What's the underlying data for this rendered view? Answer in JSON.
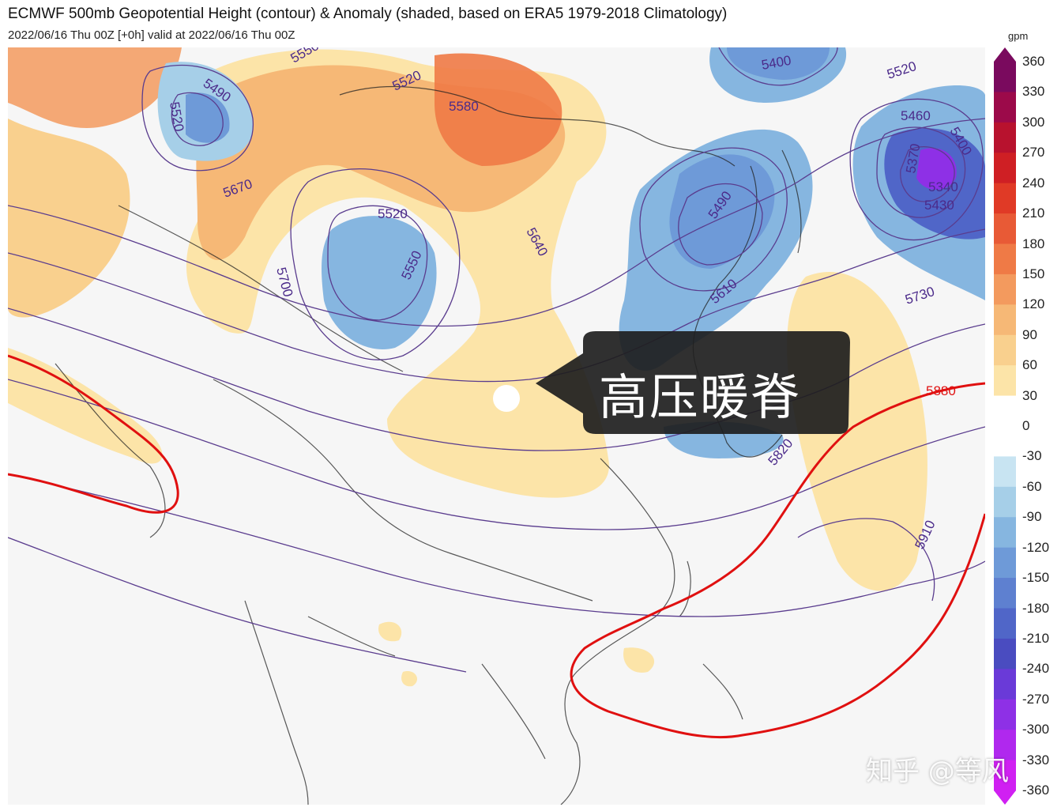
{
  "header": {
    "title": "ECMWF 500mb Geopotential Height (contour) & Anomaly (shaded, based on ERA5 1979-2018 Climatology)",
    "subtitle": "2022/06/16 Thu 00Z [+0h] valid at 2022/06/16 Thu 00Z"
  },
  "colorbar": {
    "unit": "gpm",
    "ticks": [
      "360",
      "330",
      "300",
      "270",
      "240",
      "210",
      "180",
      "150",
      "120",
      "90",
      "60",
      "30",
      "0",
      "-30",
      "-60",
      "-90",
      "-120",
      "-150",
      "-180",
      "-210",
      "-240",
      "-270",
      "-300",
      "-330",
      "-360"
    ],
    "colors": [
      "#7a0a5e",
      "#9c0a4a",
      "#b8122e",
      "#cf1f24",
      "#e03a26",
      "#e85a36",
      "#ef7a46",
      "#f39a5e",
      "#f6b876",
      "#f9d08e",
      "#fce4a8",
      "#ffffff",
      "#ffffff",
      "#c8e4f2",
      "#a6cfe8",
      "#86b6e0",
      "#6e9ad8",
      "#5e80d0",
      "#5066c8",
      "#4a4cc0",
      "#6a3ad8",
      "#8e30e6",
      "#b028ee",
      "#d020f2"
    ]
  },
  "contour_labels": [
    "5520",
    "5490",
    "5550",
    "5520",
    "5580",
    "5670",
    "5520",
    "5550",
    "5700",
    "5640",
    "5400",
    "5490",
    "5610",
    "5520",
    "5460",
    "5370",
    "5400",
    "5340",
    "5430",
    "5730",
    "5820",
    "5910"
  ],
  "highlight_contour_label": "5880",
  "annotation": {
    "text": "高压暖脊",
    "colors": {
      "callout": "#1e1e1e",
      "dot": "#ffffff"
    }
  },
  "watermark": "知乎 @等风",
  "colors": {
    "warm_anomaly": "#f39a5e",
    "cold_anomaly": "#86b6e0",
    "contour": "#5a3c8e",
    "contour_5880": "#e01010",
    "coastline": "#222222"
  }
}
